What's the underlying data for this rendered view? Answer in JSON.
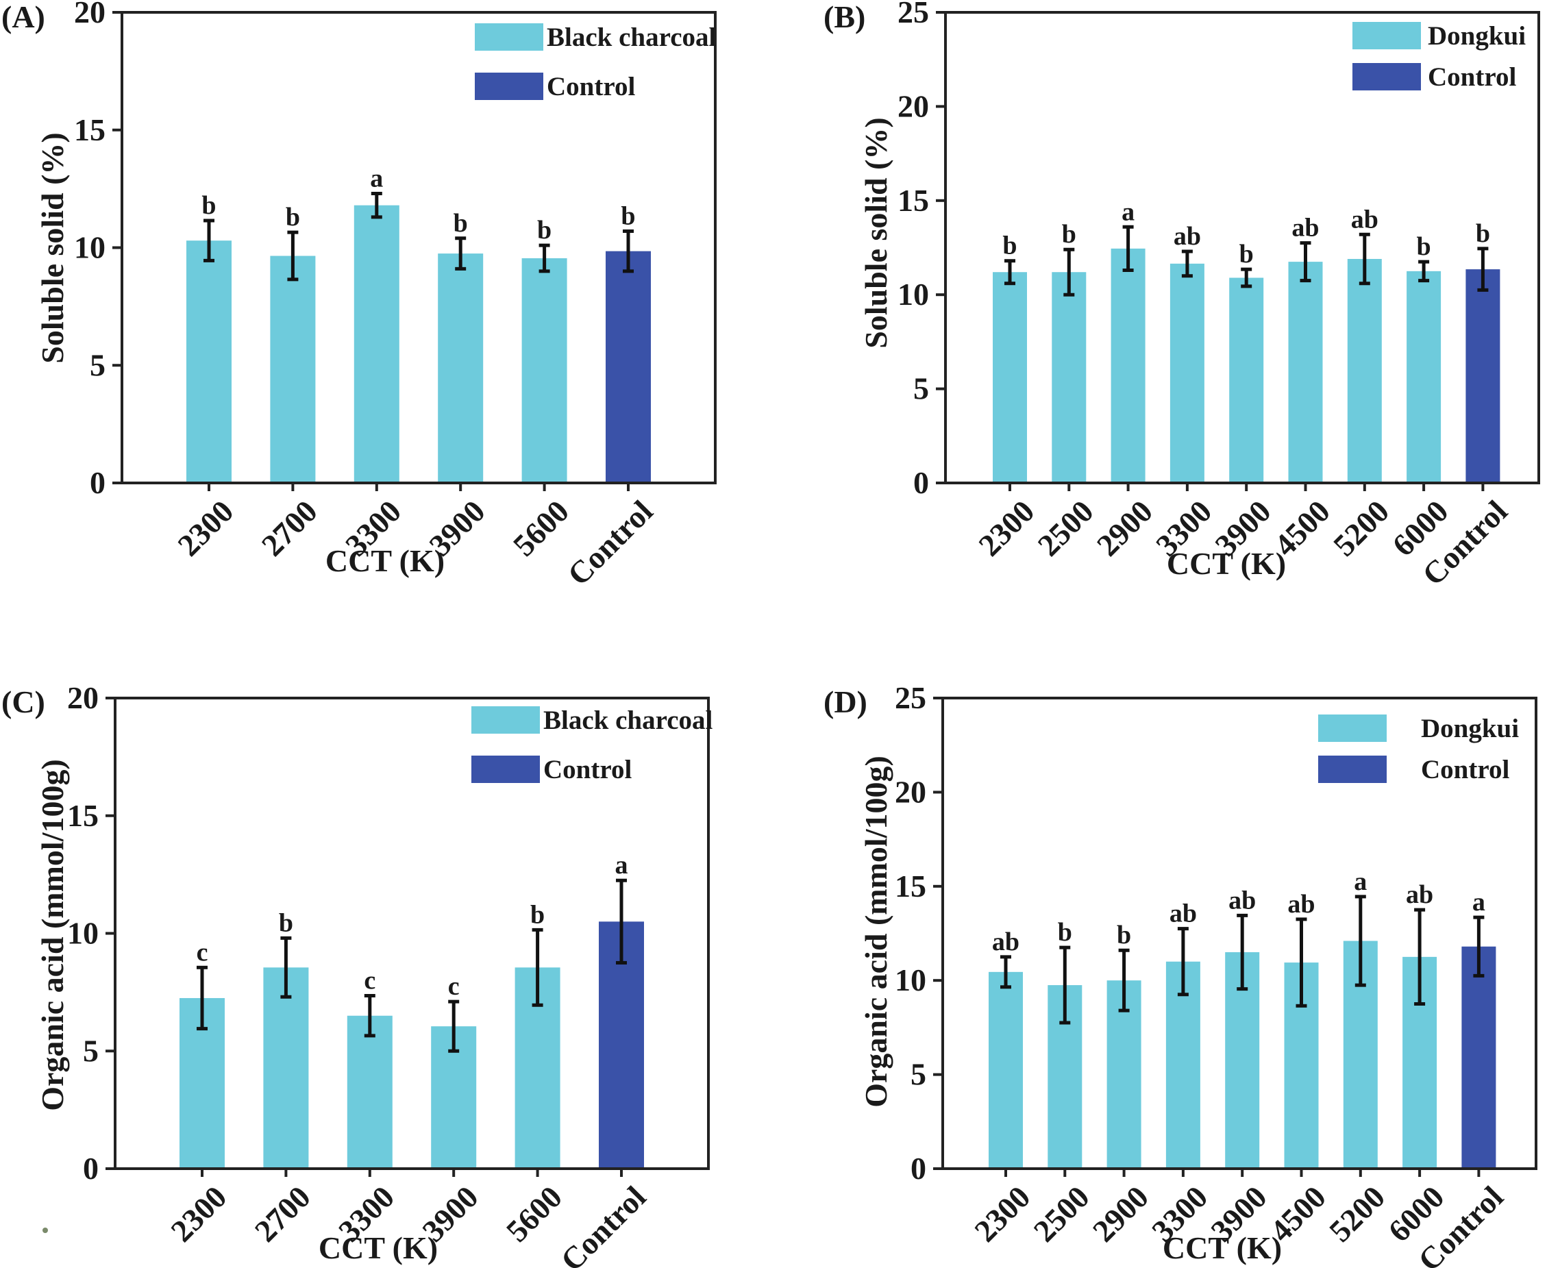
{
  "colors": {
    "treatment": "#6ecbdc",
    "control": "#3a52a8",
    "error_bar": "#111111",
    "axis": "#222222"
  },
  "chart_data": [
    {
      "panel": "(A)",
      "type": "bar",
      "categories": [
        "2300",
        "2700",
        "3300",
        "3900",
        "5600",
        "Control"
      ],
      "values": [
        10.3,
        9.65,
        11.8,
        9.75,
        9.55,
        9.85
      ],
      "errors": [
        0.85,
        1.0,
        0.5,
        0.65,
        0.55,
        0.85
      ],
      "letters": [
        "b",
        "b",
        "a",
        "b",
        "b",
        "b"
      ],
      "control_index": 5,
      "xlabel": "CCT (K)",
      "ylabel": "Soluble solid (%)",
      "ylim": [
        0,
        20
      ],
      "yticks": [
        "0",
        "5",
        "10",
        "15",
        "20"
      ],
      "legend": [
        "Black charcoal",
        "Control"
      ],
      "legend_position": "top-right"
    },
    {
      "panel": "(B)",
      "type": "bar",
      "categories": [
        "2300",
        "2500",
        "2900",
        "3300",
        "3900",
        "4500",
        "5200",
        "6000",
        "Control"
      ],
      "values": [
        11.2,
        11.2,
        12.45,
        11.65,
        10.9,
        11.75,
        11.9,
        11.25,
        11.35
      ],
      "errors": [
        0.6,
        1.2,
        1.15,
        0.65,
        0.45,
        1.0,
        1.3,
        0.5,
        1.1
      ],
      "letters": [
        "b",
        "b",
        "a",
        "ab",
        "b",
        "ab",
        "ab",
        "b",
        "b"
      ],
      "control_index": 8,
      "xlabel": "CCT (K)",
      "ylabel": "Soluble solid (%)",
      "ylim": [
        0,
        25
      ],
      "yticks": [
        "0",
        "5",
        "10",
        "15",
        "20",
        "25"
      ],
      "legend": [
        "Dongkui",
        "Control"
      ],
      "legend_position": "top-right"
    },
    {
      "panel": "(C)",
      "type": "bar",
      "categories": [
        "2300",
        "2700",
        "3300",
        "3900",
        "5600",
        "Control"
      ],
      "values": [
        7.25,
        8.55,
        6.5,
        6.05,
        8.55,
        10.5
      ],
      "errors": [
        1.3,
        1.25,
        0.85,
        1.05,
        1.6,
        1.75
      ],
      "letters": [
        "c",
        "b",
        "c",
        "c",
        "b",
        "a"
      ],
      "control_index": 5,
      "xlabel": "CCT (K)",
      "ylabel": "Organic acid (mmol/100g)",
      "ylim": [
        0,
        20
      ],
      "yticks": [
        "0",
        "5",
        "10",
        "15",
        "20"
      ],
      "legend": [
        "Black charcoal",
        "Control"
      ],
      "legend_position": "top-right"
    },
    {
      "panel": "(D)",
      "type": "bar",
      "categories": [
        "2300",
        "2500",
        "2900",
        "3300",
        "3900",
        "4500",
        "5200",
        "6000",
        "Control"
      ],
      "values": [
        10.45,
        9.75,
        10.0,
        11.0,
        11.5,
        10.95,
        12.1,
        11.25,
        11.8
      ],
      "errors": [
        0.8,
        2.0,
        1.6,
        1.75,
        1.95,
        2.3,
        2.35,
        2.5,
        1.55
      ],
      "letters": [
        "ab",
        "b",
        "b",
        "ab",
        "ab",
        "ab",
        "a",
        "ab",
        "a"
      ],
      "control_index": 8,
      "xlabel": "CCT (K)",
      "ylabel": "Organic acid (mmol/100g)",
      "ylim": [
        0,
        25
      ],
      "yticks": [
        "0",
        "5",
        "10",
        "15",
        "20",
        "25"
      ],
      "legend": [
        "Dongkui",
        "Control"
      ],
      "legend_position": "top-right"
    }
  ]
}
